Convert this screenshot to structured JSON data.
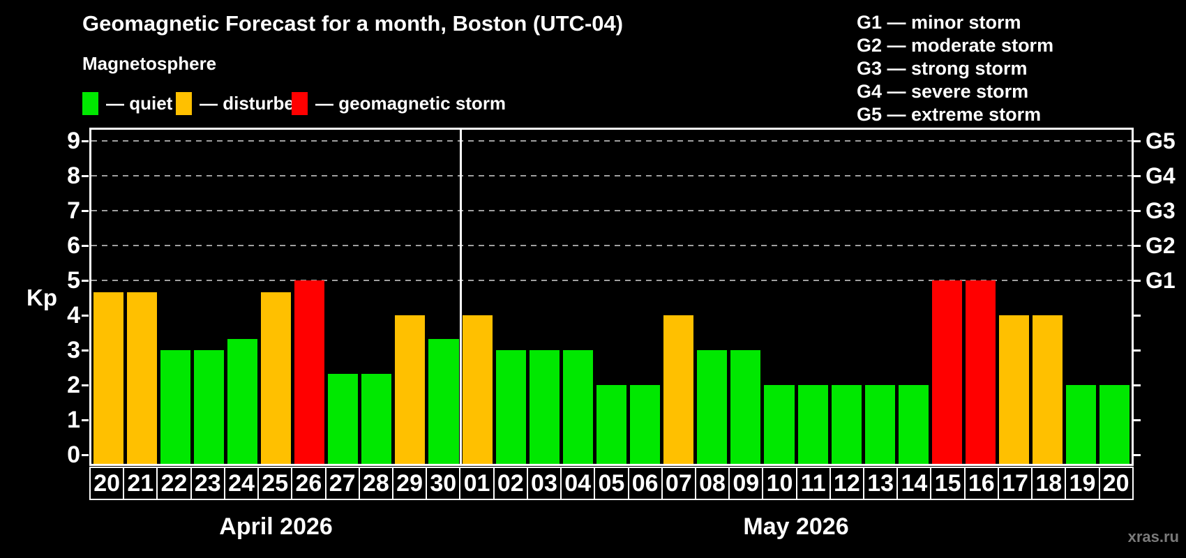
{
  "title": "Geomagnetic Forecast for a month, Boston (UTC-04)",
  "subtitle": "Magnetosphere",
  "legend": {
    "items": [
      {
        "state": "quiet",
        "label": "— quiet"
      },
      {
        "state": "disturbed",
        "label": "— disturbed"
      },
      {
        "state": "storm",
        "label": "— geomagnetic storm"
      }
    ]
  },
  "gscale_legend": [
    "G1 — minor storm",
    "G2 — moderate storm",
    "G3 — strong storm",
    "G4 — severe storm",
    "G5 — extreme storm"
  ],
  "watermark": "xras.ru",
  "colors": {
    "quiet": "#00E800",
    "disturbed": "#FFC000",
    "storm": "#FF0000",
    "background": "#000000",
    "axis": "#FFFFFF",
    "grid": "#A0A0A0",
    "watermark": "#7A7A7A"
  },
  "chart_data": {
    "type": "bar",
    "ylabel": "Kp",
    "ylim": [
      0,
      9
    ],
    "yticks": [
      0,
      1,
      2,
      3,
      4,
      5,
      6,
      7,
      8,
      9
    ],
    "grid": "dashed horizontal lines at Kp 5-9",
    "g_gridlines_at": [
      5,
      6,
      7,
      8,
      9
    ],
    "right_axis_labels": [
      {
        "kp": 5,
        "label": "G1"
      },
      {
        "kp": 6,
        "label": "G2"
      },
      {
        "kp": 7,
        "label": "G3"
      },
      {
        "kp": 8,
        "label": "G4"
      },
      {
        "kp": 9,
        "label": "G5"
      }
    ],
    "legend_position": "top",
    "months": [
      {
        "label": "April 2026",
        "days": [
          {
            "label": "20",
            "kp": 4.67,
            "state": "disturbed"
          },
          {
            "label": "21",
            "kp": 4.67,
            "state": "disturbed"
          },
          {
            "label": "22",
            "kp": 3.0,
            "state": "quiet"
          },
          {
            "label": "23",
            "kp": 3.0,
            "state": "quiet"
          },
          {
            "label": "24",
            "kp": 3.33,
            "state": "quiet"
          },
          {
            "label": "25",
            "kp": 4.67,
            "state": "disturbed"
          },
          {
            "label": "26",
            "kp": 5.0,
            "state": "storm"
          },
          {
            "label": "27",
            "kp": 2.33,
            "state": "quiet"
          },
          {
            "label": "28",
            "kp": 2.33,
            "state": "quiet"
          },
          {
            "label": "29",
            "kp": 4.0,
            "state": "disturbed"
          },
          {
            "label": "30",
            "kp": 3.33,
            "state": "quiet"
          }
        ]
      },
      {
        "label": "May 2026",
        "days": [
          {
            "label": "01",
            "kp": 4.0,
            "state": "disturbed"
          },
          {
            "label": "02",
            "kp": 3.0,
            "state": "quiet"
          },
          {
            "label": "03",
            "kp": 3.0,
            "state": "quiet"
          },
          {
            "label": "04",
            "kp": 3.0,
            "state": "quiet"
          },
          {
            "label": "05",
            "kp": 2.0,
            "state": "quiet"
          },
          {
            "label": "06",
            "kp": 2.0,
            "state": "quiet"
          },
          {
            "label": "07",
            "kp": 4.0,
            "state": "disturbed"
          },
          {
            "label": "08",
            "kp": 3.0,
            "state": "quiet"
          },
          {
            "label": "09",
            "kp": 3.0,
            "state": "quiet"
          },
          {
            "label": "10",
            "kp": 2.0,
            "state": "quiet"
          },
          {
            "label": "11",
            "kp": 2.0,
            "state": "quiet"
          },
          {
            "label": "12",
            "kp": 2.0,
            "state": "quiet"
          },
          {
            "label": "13",
            "kp": 2.0,
            "state": "quiet"
          },
          {
            "label": "14",
            "kp": 2.0,
            "state": "quiet"
          },
          {
            "label": "15",
            "kp": 5.0,
            "state": "storm"
          },
          {
            "label": "16",
            "kp": 5.0,
            "state": "storm"
          },
          {
            "label": "17",
            "kp": 4.0,
            "state": "disturbed"
          },
          {
            "label": "18",
            "kp": 4.0,
            "state": "disturbed"
          },
          {
            "label": "19",
            "kp": 2.0,
            "state": "quiet"
          },
          {
            "label": "20",
            "kp": 2.0,
            "state": "quiet"
          }
        ]
      }
    ]
  }
}
